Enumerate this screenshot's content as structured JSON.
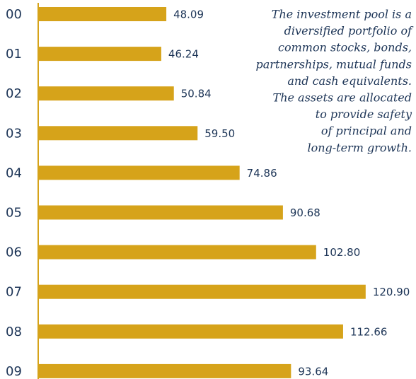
{
  "chart_data": {
    "type": "bar",
    "orientation": "horizontal",
    "categories": [
      "00",
      "01",
      "02",
      "03",
      "04",
      "05",
      "06",
      "07",
      "08",
      "09"
    ],
    "values": [
      48.09,
      46.24,
      50.84,
      59.5,
      74.86,
      90.68,
      102.8,
      120.9,
      112.66,
      93.64
    ],
    "value_labels": [
      "48.09",
      "46.24",
      "50.84",
      "59.50",
      "74.86",
      "90.68",
      "102.80",
      "120.90",
      "112.66",
      "93.64"
    ],
    "color": "#d6a31a",
    "xlim": [
      0,
      138
    ],
    "annotation": [
      "The investment pool is a",
      "diversified portfolio of",
      "common stocks, bonds,",
      "partnerships, mutual funds",
      "and cash equivalents.",
      "The assets are allocated",
      "to provide safety",
      "of principal and",
      "long-term growth."
    ]
  }
}
